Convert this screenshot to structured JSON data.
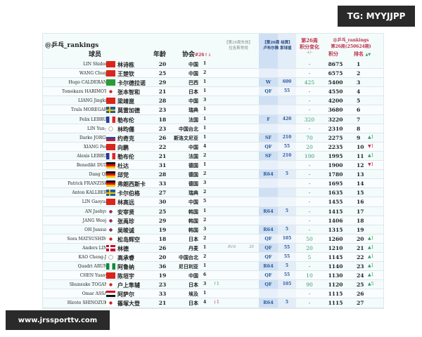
{
  "watermark_top": "TG: MYYJJPP",
  "watermark_bottom": "www.jrssporttv.com",
  "header": {
    "brand": "@乒乓_rankings",
    "player": "球员",
    "age": "年龄",
    "assoc": "协会",
    "assoc_sort": "#26↑↓",
    "expired_title": "【第26周失效】",
    "expired_sub": "拉各斯常规",
    "settled_title": "【第26周 结算】",
    "settled_sub": "卢布尔雅 那球星",
    "change_title": "第26周",
    "change_sub": "积分变化",
    "change_unit": "+/-",
    "rank_brand": "@乒乓_rankings",
    "rank_period": "第26周(250624期)",
    "points": "积分",
    "rank": "排名",
    "rank_arrows": "▲▼"
  },
  "colors": {
    "accent_red": "#c0304a",
    "up_green": "#3a9a6a",
    "blue_col": "#cfe0f4"
  },
  "rows": [
    {
      "en": "LIN Shidong",
      "flag": "cn",
      "cn": "林诗栋",
      "age": "20",
      "assoc": "中国",
      "ar": "1",
      "stage": "",
      "sp": "",
      "change": "-",
      "points": "8675",
      "rank": "1"
    },
    {
      "en": "WANG Chuqin",
      "flag": "cn",
      "cn": "王楚钦",
      "age": "25",
      "assoc": "中国",
      "ar": "2",
      "stage": "",
      "sp": "",
      "change": "-",
      "points": "6575",
      "rank": "2"
    },
    {
      "en": "Hugo CALDERANO",
      "flag": "br",
      "cn": "卡尔德拉诺",
      "age": "29",
      "assoc": "巴西",
      "ar": "1",
      "stage": "W",
      "sp": "600",
      "change": "425",
      "points": "5400",
      "rank": "3"
    },
    {
      "en": "Tomokazu HARIMOTO",
      "flag": "jp",
      "cn": "张本智和",
      "age": "21",
      "assoc": "日本",
      "ar": "1",
      "stage": "QF",
      "sp": "55",
      "change": "-",
      "points": "4550",
      "rank": "4"
    },
    {
      "en": "LIANG Jingkun",
      "flag": "cn",
      "cn": "梁靖崑",
      "age": "28",
      "assoc": "中国",
      "ar": "3",
      "stage": "",
      "sp": "",
      "change": "-",
      "points": "4200",
      "rank": "5"
    },
    {
      "en": "Truls MOREGARD",
      "flag": "se",
      "cn": "莫雷加德",
      "age": "23",
      "assoc": "瑞典",
      "ar": "1",
      "stage": "",
      "sp": "",
      "change": "-",
      "points": "3680",
      "rank": "6"
    },
    {
      "en": "Felix LEBRUN",
      "flag": "fr",
      "cn": "勒布伦",
      "age": "18",
      "assoc": "法国",
      "ar": "1",
      "stage": "F",
      "sp": "420",
      "change": "320",
      "points": "3220",
      "rank": "7"
    },
    {
      "en": "LIN Yun-Ju",
      "flag": "tpe",
      "cn": "林昀儒",
      "age": "23",
      "assoc": "中国台北",
      "ar": "1",
      "stage": "",
      "sp": "",
      "change": "-",
      "points": "2310",
      "rank": "8"
    },
    {
      "en": "Darko JORGIC",
      "flag": "si",
      "cn": "约奇克",
      "age": "26",
      "assoc": "斯洛文尼亚",
      "ar": "1",
      "stage": "SF",
      "sp": "210",
      "change": "70",
      "points": "2275",
      "rank": "9",
      "move": "▲1",
      "dir": "up"
    },
    {
      "en": "XIANG Peng",
      "flag": "cn",
      "cn": "向鹏",
      "age": "22",
      "assoc": "中国",
      "ar": "4",
      "stage": "QF",
      "sp": "55",
      "change": "20",
      "points": "2235",
      "rank": "10",
      "move": "▼1",
      "dir": "down"
    },
    {
      "en": "Alexis LEBRUN",
      "flag": "fr",
      "cn": "勒布伦",
      "age": "21",
      "assoc": "法国",
      "ar": "2",
      "stage": "SF",
      "sp": "210",
      "change": "190",
      "points": "1995",
      "rank": "11",
      "move": "▲1",
      "dir": "up"
    },
    {
      "en": "Benedikt DUDA",
      "flag": "de",
      "cn": "杜达",
      "age": "31",
      "assoc": "德国",
      "ar": "1",
      "stage": "",
      "sp": "",
      "change": "-",
      "points": "1900",
      "rank": "12",
      "move": "▼1",
      "dir": "down"
    },
    {
      "en": "Dang QIU",
      "flag": "de",
      "cn": "邱党",
      "age": "28",
      "assoc": "德国",
      "ar": "2",
      "stage": "R64",
      "sp": "5",
      "change": "-",
      "points": "1780",
      "rank": "13"
    },
    {
      "en": "Patrick FRANZISKA",
      "flag": "de",
      "cn": "弗朗西斯卡",
      "age": "33",
      "assoc": "德国",
      "ar": "3",
      "stage": "",
      "sp": "",
      "change": "-",
      "points": "1695",
      "rank": "14"
    },
    {
      "en": "Anton KALLBERG",
      "flag": "se",
      "cn": "卡尔伯格",
      "age": "27",
      "assoc": "瑞典",
      "ar": "2",
      "stage": "",
      "sp": "",
      "change": "-",
      "points": "1635",
      "rank": "15"
    },
    {
      "en": "LIN Gaoyuan",
      "flag": "cn",
      "cn": "林高远",
      "age": "30",
      "assoc": "中国",
      "ar": "5",
      "stage": "",
      "sp": "",
      "change": "-",
      "points": "1455",
      "rank": "16"
    },
    {
      "en": "AN Jaehyun",
      "flag": "kr",
      "cn": "安宰贤",
      "age": "25",
      "assoc": "韩国",
      "ar": "1",
      "stage": "R64",
      "sp": "5",
      "change": "-",
      "points": "1415",
      "rank": "17"
    },
    {
      "en": "JANG Woojin",
      "flag": "kr",
      "cn": "张禹珍",
      "age": "29",
      "assoc": "韩国",
      "ar": "2",
      "stage": "",
      "sp": "",
      "change": "-",
      "points": "1406",
      "rank": "18"
    },
    {
      "en": "OH Junsung",
      "flag": "kr",
      "cn": "吴晙诚",
      "age": "19",
      "assoc": "韩国",
      "ar": "3",
      "stage": "R64",
      "sp": "5",
      "change": "-",
      "points": "1315",
      "rank": "19"
    },
    {
      "en": "Sora MATSUSHIMA",
      "flag": "jp",
      "cn": "松岛辉空",
      "age": "18",
      "assoc": "日本",
      "ar": "2",
      "stage": "QF",
      "sp": "105",
      "change": "50",
      "points": "1260",
      "rank": "20",
      "move": "▲1",
      "dir": "up"
    },
    {
      "en": "Anders LIND",
      "flag": "dk",
      "cn": "林德",
      "age": "26",
      "assoc": "丹麦",
      "ar": "1",
      "lg1": "R16",
      "lg2": "35",
      "stage": "QF",
      "sp": "55",
      "change": "20",
      "points": "1210",
      "rank": "21",
      "move": "▲1",
      "dir": "up"
    },
    {
      "en": "KAO Cheng-Jui",
      "flag": "tpe",
      "cn": "高承睿",
      "age": "20",
      "assoc": "中国台北",
      "ar": "2",
      "stage": "QF",
      "sp": "55",
      "change": "5",
      "points": "1145",
      "rank": "22",
      "move": "▲1",
      "dir": "up"
    },
    {
      "en": "Quadri ARUNA",
      "flag": "ng",
      "cn": "阿鲁纳",
      "age": "36",
      "assoc": "尼日利亚",
      "ar": "1",
      "stage": "R64",
      "sp": "5",
      "change": "-",
      "points": "1140",
      "rank": "23",
      "move": "▲1",
      "dir": "up"
    },
    {
      "en": "CHEN Yuanyu",
      "flag": "cn",
      "cn": "陈垣宇",
      "age": "19",
      "assoc": "中国",
      "ar": "6",
      "stage": "QF",
      "sp": "55",
      "change": "10",
      "points": "1130",
      "rank": "24",
      "move": "▲1",
      "dir": "up"
    },
    {
      "en": "Shunsuke TOGAMI",
      "flag": "jp",
      "cn": "户上隼辅",
      "age": "23",
      "assoc": "日本",
      "ar": "3",
      "amove": "↑1",
      "adir": "up",
      "stage": "QF",
      "sp": "105",
      "change": "90",
      "points": "1120",
      "rank": "25",
      "move": "▲5",
      "dir": "up"
    },
    {
      "en": "Omar ASSAR",
      "flag": "eg",
      "cn": "阿萨尔",
      "age": "33",
      "assoc": "埃及",
      "ar": "1",
      "stage": "",
      "sp": "",
      "change": "-",
      "points": "1115",
      "rank": "26"
    },
    {
      "en": "Hiroto SHINOZUKA",
      "flag": "jp",
      "cn": "篠塚大登",
      "age": "21",
      "assoc": "日本",
      "ar": "4",
      "amove": "↓1",
      "adir": "down",
      "stage": "R64",
      "sp": "5",
      "change": "-",
      "points": "1115",
      "rank": "27"
    }
  ]
}
